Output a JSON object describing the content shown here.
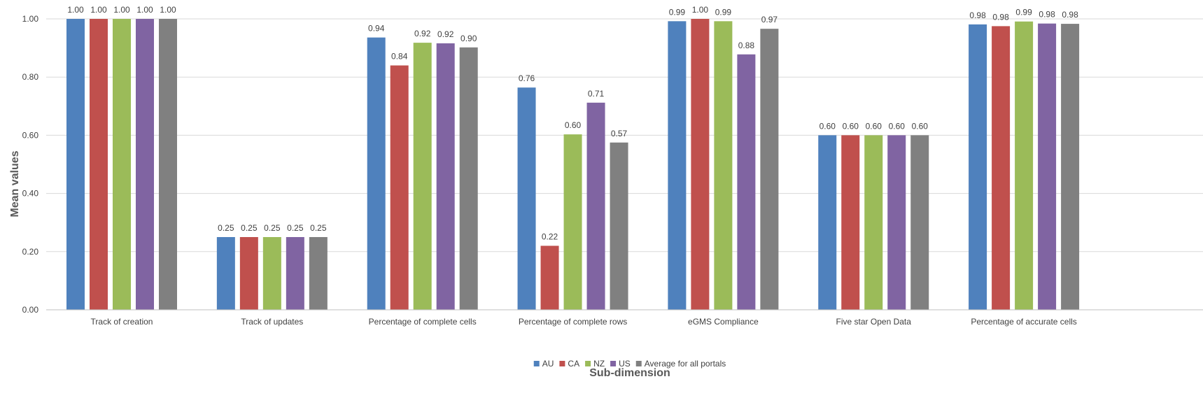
{
  "chart_data": {
    "type": "bar",
    "title": "",
    "xlabel": "Sub-dimension",
    "ylabel": "Mean values",
    "ylim": [
      0,
      1
    ],
    "yticks": [
      0,
      0.2,
      0.4,
      0.6,
      0.8,
      1.0
    ],
    "ytick_labels": [
      "0.00",
      "0.20",
      "0.40",
      "0.60",
      "0.80",
      "1.00"
    ],
    "grid": "horizontal",
    "legend_position": "bottom",
    "categories": [
      "Track of creation",
      "Track of updates",
      "Percentage of complete cells",
      "Percentage of complete rows",
      "eGMS Compliance",
      "Five star Open Data",
      "Percentage of accurate cells"
    ],
    "series": [
      {
        "name": "AU",
        "color": "#4F81BD",
        "values": [
          1.0,
          0.25,
          0.936,
          0.764,
          0.992,
          0.6,
          0.981
        ],
        "labels": [
          "1.00",
          "0.25",
          "0.94",
          "0.76",
          "0.99",
          "0.60",
          "0.98"
        ]
      },
      {
        "name": "CA",
        "color": "#C0504D",
        "values": [
          1.0,
          0.25,
          0.84,
          0.22,
          1.0,
          0.6,
          0.975
        ],
        "labels": [
          "1.00",
          "0.25",
          "0.84",
          "0.22",
          "1.00",
          "0.60",
          "0.98"
        ]
      },
      {
        "name": "NZ",
        "color": "#9BBB59",
        "values": [
          1.0,
          0.25,
          0.918,
          0.603,
          0.992,
          0.6,
          0.991
        ],
        "labels": [
          "1.00",
          "0.25",
          "0.92",
          "0.60",
          "0.99",
          "0.60",
          "0.99"
        ]
      },
      {
        "name": "US",
        "color": "#8064A2",
        "values": [
          1.0,
          0.25,
          0.916,
          0.712,
          0.878,
          0.6,
          0.984
        ],
        "labels": [
          "1.00",
          "0.25",
          "0.92",
          "0.71",
          "0.88",
          "0.60",
          "0.98"
        ]
      },
      {
        "name": "Average for all portals",
        "color": "#808080",
        "values": [
          1.0,
          0.25,
          0.902,
          0.575,
          0.966,
          0.6,
          0.983
        ],
        "labels": [
          "1.00",
          "0.25",
          "0.90",
          "0.57",
          "0.97",
          "0.60",
          "0.98"
        ]
      }
    ]
  },
  "colors": {
    "gridline": "#D9D9D9",
    "axis_line": "#BFBFBF",
    "text": "#404040",
    "axis_title": "#595959"
  }
}
